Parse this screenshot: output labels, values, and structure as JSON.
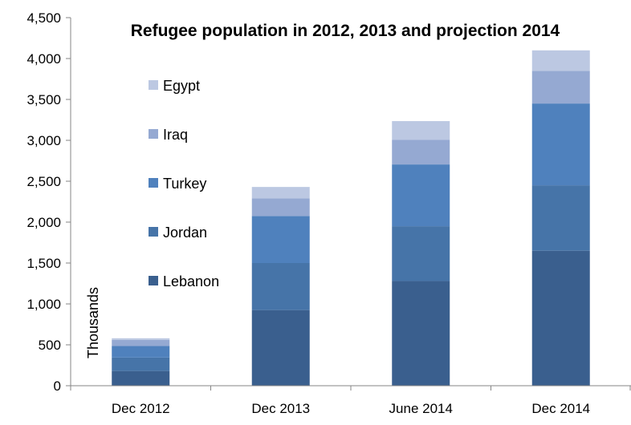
{
  "chart_data": {
    "type": "bar",
    "stacked": true,
    "title": "Refugee population in 2012, 2013 and projection 2014",
    "xlabel": "",
    "ylabel": "Thousands",
    "categories": [
      "Dec 2012",
      "Dec 2013",
      "June 2014",
      "Dec 2014"
    ],
    "ylim": [
      0,
      4500
    ],
    "yticks": [
      0,
      500,
      1000,
      1500,
      2000,
      2500,
      3000,
      3500,
      4000,
      4500
    ],
    "ytick_labels": [
      "0",
      "500",
      "1,000",
      "1,500",
      "2,000",
      "2,500",
      "3,000",
      "3,500",
      "4,000",
      "4,500"
    ],
    "grid": false,
    "legend_position": "upper-left inside plot",
    "series": [
      {
        "name": "Lebanon",
        "color": "#3a5f8e",
        "values": [
          180,
          925,
          1280,
          1650
        ]
      },
      {
        "name": "Jordan",
        "color": "#4674a8",
        "values": [
          165,
          575,
          670,
          800
        ]
      },
      {
        "name": "Turkey",
        "color": "#4f81bd",
        "values": [
          140,
          575,
          755,
          1000
        ]
      },
      {
        "name": "Iraq",
        "color": "#95a9d2",
        "values": [
          75,
          215,
          300,
          400
        ]
      },
      {
        "name": "Egypt",
        "color": "#bcc8e2",
        "values": [
          20,
          140,
          230,
          250
        ]
      }
    ]
  }
}
